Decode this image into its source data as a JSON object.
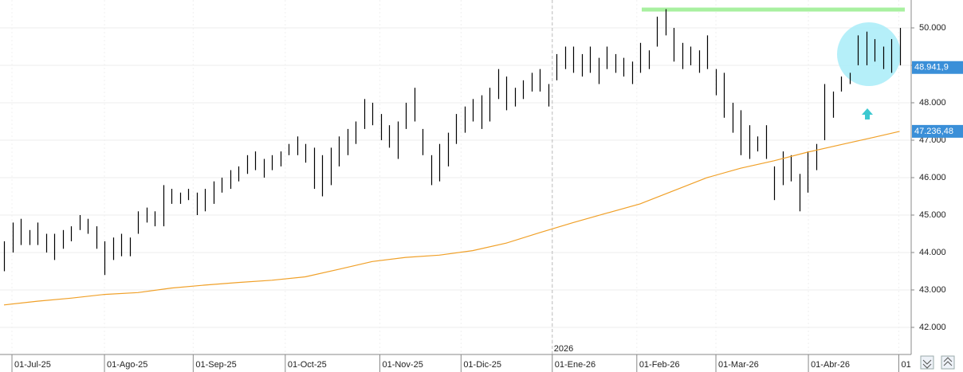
{
  "chart_data": {
    "type": "ohlc",
    "xlim": [
      -0.48,
      108.38
    ],
    "ylim": [
      41276,
      50745
    ],
    "grid": true,
    "color": "#000000",
    "yticks": [
      {
        "value": 42000,
        "label": "42.000"
      },
      {
        "value": 43000,
        "label": "43.000"
      },
      {
        "value": 44000,
        "label": "44.000"
      },
      {
        "value": 45000,
        "label": "45.000"
      },
      {
        "value": 46000,
        "label": "46.000"
      },
      {
        "value": 47000,
        "label": "47.000"
      },
      {
        "value": 48000,
        "label": "48.000"
      },
      {
        "value": 49000,
        "label": "49.000"
      },
      {
        "value": 50000,
        "label": "50.000"
      }
    ],
    "xticks": [
      {
        "value": 0.95,
        "label": "01-Jul-25"
      },
      {
        "value": 12,
        "label": "01-Ago-25"
      },
      {
        "value": 22.6,
        "label": "01-Sep-25"
      },
      {
        "value": 33.6,
        "label": "01-Oct-25"
      },
      {
        "value": 44.9,
        "label": "01-Nov-25"
      },
      {
        "value": 54.6,
        "label": "01-Dic-25"
      },
      {
        "value": 65.5,
        "label": "01-Ene-26"
      },
      {
        "value": 75.6,
        "label": "01-Feb-26"
      },
      {
        "value": 85.05,
        "label": "01-Mar-26"
      },
      {
        "value": 96.1,
        "label": "01-Abr-26"
      },
      {
        "value": 106.9,
        "label": "01"
      }
    ],
    "low": [
      43500,
      44000,
      44200,
      44200,
      44200,
      44000,
      43800,
      44100,
      44300,
      44600,
      44500,
      44100,
      43400,
      43800,
      43900,
      43900,
      44500,
      44800,
      44700,
      44700,
      45300,
      45300,
      45400,
      45000,
      45100,
      45300,
      45600,
      45700,
      45900,
      46100,
      46200,
      46000,
      46200,
      46300,
      46600,
      46600,
      46400,
      45700,
      45500,
      45800,
      46300,
      46600,
      46900,
      47300,
      47400,
      47000,
      46800,
      46500,
      47300,
      47500,
      46600,
      45800,
      45900,
      46300,
      46900,
      47200,
      47500,
      47300,
      47500,
      48100,
      47800,
      47900,
      48100,
      48300,
      48300,
      47900,
      48600,
      48900,
      48800,
      48700,
      48800,
      48500,
      48900,
      48800,
      48700,
      48500,
      48800,
      48900,
      49500,
      49800,
      49100,
      48900,
      49000,
      48800,
      48900,
      48200,
      47600,
      47200,
      46600,
      46500,
      46700,
      46500,
      45400,
      45800,
      45900,
      45100,
      45600,
      46200,
      47000,
      47600,
      48300,
      48500,
      49000,
      49000,
      49100,
      48900,
      48800,
      49000
    ],
    "high": [
      44300,
      44800,
      44900,
      44600,
      44800,
      44500,
      44500,
      44600,
      44700,
      45000,
      44900,
      44700,
      44300,
      44400,
      44500,
      44400,
      45100,
      45200,
      45100,
      45800,
      45700,
      45600,
      45700,
      45600,
      45700,
      45900,
      46000,
      46200,
      46300,
      46600,
      46700,
      46500,
      46600,
      46700,
      46900,
      47100,
      46900,
      46800,
      46600,
      46800,
      47100,
      47300,
      47500,
      48100,
      48000,
      47700,
      47400,
      47500,
      48000,
      48400,
      47300,
      46600,
      46900,
      47200,
      47700,
      47900,
      48100,
      48200,
      48400,
      48900,
      48700,
      48400,
      48600,
      48800,
      48900,
      48500,
      49300,
      49500,
      49500,
      49300,
      49500,
      49200,
      49500,
      49300,
      49200,
      49100,
      49600,
      49400,
      50300,
      50500,
      50000,
      49600,
      49500,
      49400,
      49800,
      48900,
      48800,
      48000,
      47800,
      47400,
      47100,
      47400,
      46300,
      46700,
      46600,
      46100,
      46700,
      46900,
      48500,
      48300,
      48700,
      48800,
      49800,
      49900,
      49700,
      49500,
      49700,
      50000
    ],
    "ma": {
      "color": "#f0a028",
      "x": [
        0,
        4,
        8,
        12,
        16,
        20,
        24,
        28,
        32,
        36,
        40,
        44,
        48,
        52,
        56,
        60,
        64,
        68,
        72,
        76,
        80,
        84,
        88,
        92,
        96,
        100,
        104,
        107
      ],
      "values": [
        42600,
        42700,
        42780,
        42880,
        42930,
        43050,
        43130,
        43200,
        43260,
        43350,
        43550,
        43760,
        43870,
        43930,
        44050,
        44250,
        44530,
        44800,
        45050,
        45300,
        45650,
        46000,
        46250,
        46450,
        46680,
        46880,
        47080,
        47236
      ]
    },
    "resistance": {
      "value": 50490,
      "color": "#a8f0a0"
    },
    "last_price": {
      "value": 48941.9,
      "label": "48.941,9",
      "color": "#3a8fd8"
    },
    "ma_label": {
      "value": 47236.48,
      "label": "47.236,48",
      "color": "#3a8fd8"
    },
    "year_marker": {
      "x": 65.5,
      "label": "2026"
    }
  }
}
